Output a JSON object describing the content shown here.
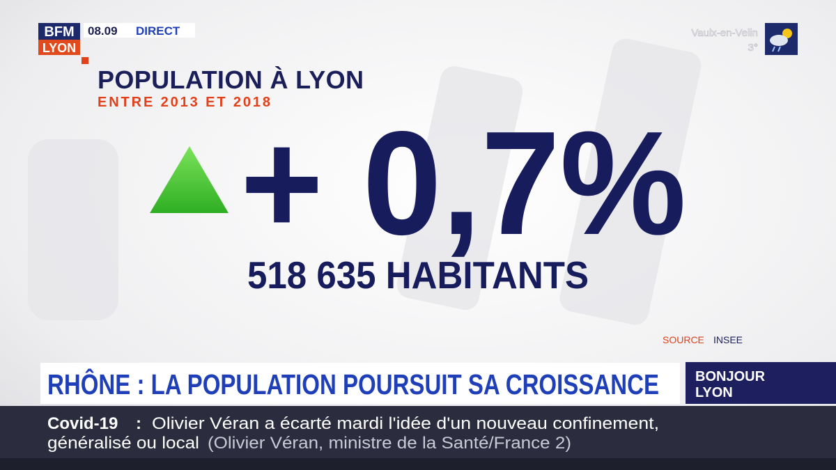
{
  "logo": {
    "top": "BFM",
    "bottom": "LYON"
  },
  "clock": {
    "time": "08.09",
    "status": "DIRECT"
  },
  "weather": {
    "place": "Vaulx-en-Velin",
    "temperature": "3°"
  },
  "graphic": {
    "title": "POPULATION À LYON",
    "subtitle": "ENTRE 2013 ET 2018",
    "change": "+ 0,7%",
    "population": "518 635 HABITANTS",
    "source_label": "SOURCE",
    "source": "INSEE"
  },
  "headline": "RHÔNE : LA POPULATION POURSUIT SA CROISSANCE",
  "program": {
    "line1": "BONJOUR",
    "line2": "LYON"
  },
  "ticker": {
    "topic": "Covid-19",
    "separator": ":",
    "line1": "Olivier Véran a écarté mardi l'idée d'un nouveau confinement,",
    "line2": "généralisé ou local",
    "attribution": "(Olivier Véran, ministre de la Santé/France 2)"
  }
}
